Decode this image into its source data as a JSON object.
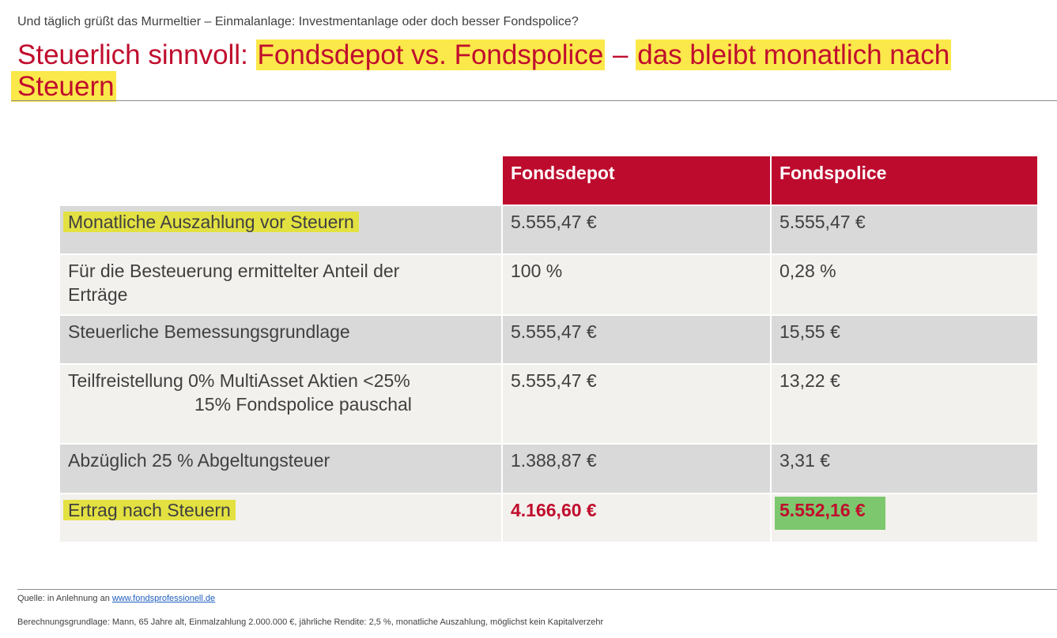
{
  "header": {
    "subtitle": "Und täglich grüßt das Murmeltier – Einmalanlage: Investmentanlage oder doch besser Fondspolice?",
    "title_part1": "Steuerlich sinnvoll: ",
    "title_hl1": "Fondsdepot vs. Fondspolice",
    "title_sep": " – ",
    "title_hl2": "das bleibt monatlich nach",
    "title_hl3": "Steuern"
  },
  "table": {
    "columns": [
      "",
      "Fondsdepot",
      "Fondspolice"
    ],
    "rows": [
      {
        "label": "Monatliche Auszahlung vor Steuern",
        "depot": "5.555,47 €",
        "police": "5.555,47 €"
      },
      {
        "label": "Für die Besteuerung ermittelter Anteil der Erträge",
        "depot": "100 %",
        "police": "0,28 %"
      },
      {
        "label": "Steuerliche Bemessungsgrundlage",
        "depot": "5.555,47 €",
        "police": "15,55 €"
      },
      {
        "label": "Teilfreistellung 0% MultiAsset Aktien <25%",
        "label_line2": "15% Fondspolice pauschal",
        "depot": "5.555,47 €",
        "police": "13,22 €"
      },
      {
        "label": "Abzüglich 25 % Abgeltungsteuer",
        "depot": "1.388,87 €",
        "police": "3,31 €"
      },
      {
        "label": "Ertrag nach Steuern",
        "depot": "4.166,60 €",
        "police": "5.552,16 €"
      }
    ]
  },
  "footer": {
    "source_prefix": "Quelle: in Anlehnung an ",
    "source_link": "www.fondsprofessionell.de",
    "basis": "Berechnungsgrundlage: Mann, 65 Jahre alt, Einmalzahlung 2.000.000 €, jährliche Rendite: 2,5 %, monatliche Auszahlung, möglichst kein Kapitalverzehr"
  },
  "colors": {
    "title_red": "#c00d2d",
    "header_red": "#bd0b2e",
    "highlight_yellow": "#fbe84a",
    "highlight_green": "#7dc86e",
    "row_gray": "#d9d9d9",
    "row_light": "#f3f1ed"
  }
}
